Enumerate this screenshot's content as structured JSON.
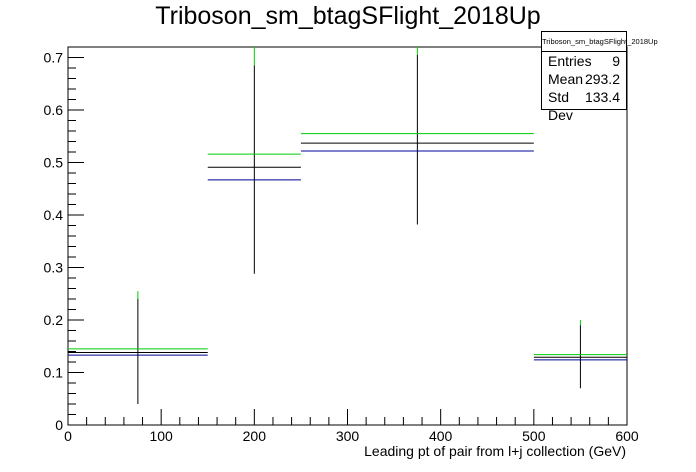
{
  "chart_data": {
    "type": "histogram",
    "title": "Triboson_sm_btagSFlight_2018Up",
    "xlabel": "Leading pt of pair from l+j collection (GeV)",
    "ylabel": "",
    "xlim": [
      0,
      600
    ],
    "ylim": [
      0,
      0.72
    ],
    "x_ticks": [
      "0",
      "100",
      "200",
      "300",
      "400",
      "500",
      "600"
    ],
    "y_ticks": [
      "0",
      "0.1",
      "0.2",
      "0.3",
      "0.4",
      "0.5",
      "0.6",
      "0.7"
    ],
    "bins": [
      {
        "low": 0,
        "high": 150,
        "center": 75
      },
      {
        "low": 150,
        "high": 250,
        "center": 200
      },
      {
        "low": 250,
        "high": 500,
        "center": 375
      },
      {
        "low": 500,
        "high": 600,
        "center": 550
      }
    ],
    "series": [
      {
        "color": "#00cc00",
        "values": [
          0.145,
          0.516,
          0.555,
          0.134
        ]
      },
      {
        "color": "#000000",
        "values": [
          0.138,
          0.491,
          0.537,
          0.129
        ]
      },
      {
        "color": "#000099",
        "values": [
          0.133,
          0.467,
          0.522,
          0.124
        ]
      }
    ],
    "error_bars": [
      {
        "center": 75,
        "low": 0.04,
        "high": 0.24,
        "top_color": "#00cc00",
        "top_low": 0.24,
        "top_high": 0.255
      },
      {
        "center": 200,
        "low": 0.288,
        "high": 0.685,
        "top_color": "#00cc00",
        "top_low": 0.685,
        "top_high": 0.72
      },
      {
        "center": 375,
        "low": 0.382,
        "high": 0.705,
        "top_color": "#00cc00",
        "top_low": 0.705,
        "top_high": 0.72
      },
      {
        "center": 550,
        "low": 0.07,
        "high": 0.19,
        "top_color": "#00cc00",
        "top_low": 0.19,
        "top_high": 0.2
      }
    ],
    "stats_box": {
      "name": "Triboson_sm_btagSFlight_2018Up",
      "entries_label": "Entries",
      "entries": "9",
      "mean_label": "Mean",
      "mean": "293.2",
      "stddev_label": "Std Dev",
      "stddev": "133.4"
    }
  }
}
